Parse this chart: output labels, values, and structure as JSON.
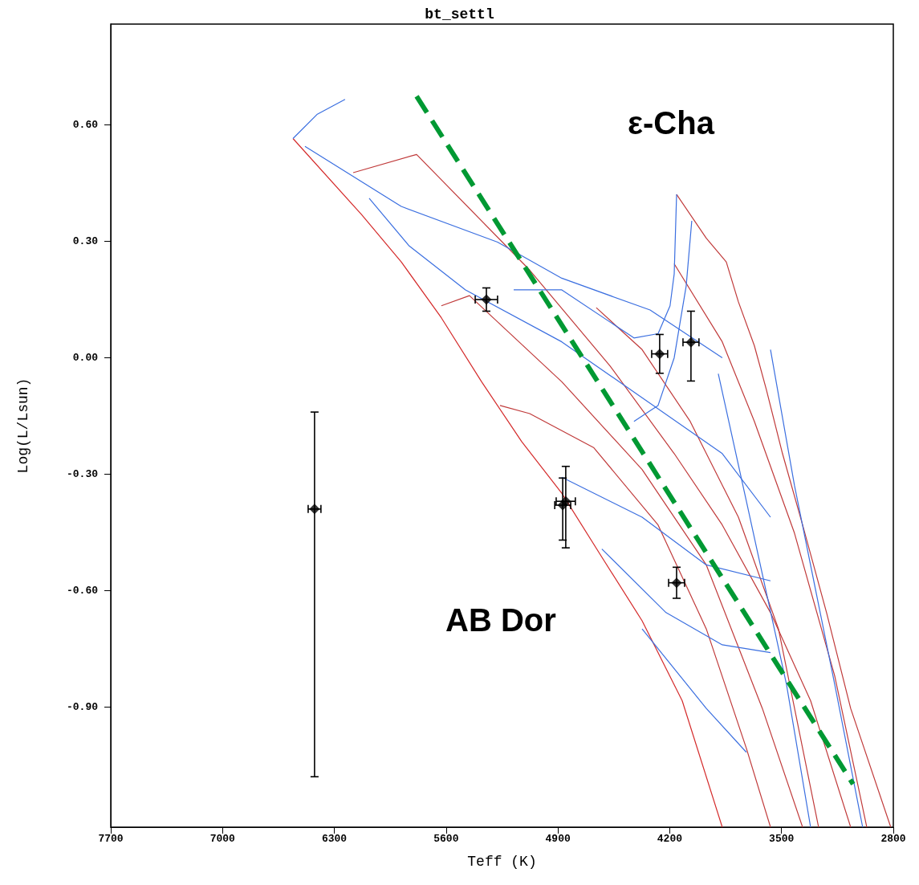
{
  "chart_data": {
    "type": "line",
    "title": "bt_settl",
    "xlabel": "Teff (K)",
    "ylabel": "Log(L/Lsun)",
    "xlim": [
      7700,
      2800
    ],
    "ylim": [
      -1.21,
      0.86
    ],
    "xticks": [
      7700,
      7000,
      6300,
      5600,
      4900,
      4200,
      3500,
      2800
    ],
    "yticks": [
      {
        "value": 0.6,
        "label": "0.60"
      },
      {
        "value": 0.3,
        "label": "0.30"
      },
      {
        "value": 0,
        "label": "0.00"
      },
      {
        "value": -0.3,
        "label": "-0.30"
      },
      {
        "value": -0.6,
        "label": "-0.60"
      },
      {
        "value": -0.9,
        "label": "-0.90"
      }
    ],
    "marker": "none",
    "line_style": "solid",
    "annotations": [
      "ε-Cha",
      "AB Dor"
    ],
    "series": [
      {
        "color": "#d42a2a",
        "x": [
          6559,
          6132,
          5881,
          5630,
          5378,
          5127,
          4876,
          4625,
          4373,
          4122,
          3871
        ],
        "values": [
          0.565,
          0.37,
          0.247,
          0.103,
          -0.062,
          -0.216,
          -0.349,
          -0.514,
          -0.678,
          -0.884,
          -1.21
        ]
      },
      {
        "color": "#c03a3a",
        "x": [
          4157,
          3971,
          3846,
          3770,
          3670,
          3595,
          3494,
          3368,
          3218,
          3067,
          2816
        ],
        "values": [
          0.421,
          0.308,
          0.247,
          0.144,
          0.031,
          -0.082,
          -0.247,
          -0.431,
          -0.657,
          -0.904,
          -1.21
        ]
      },
      {
        "color": "#c03a3a",
        "x": [
          6182,
          5785,
          5077,
          4574,
          4172,
          3871,
          3569,
          3318,
          3067
        ],
        "values": [
          0.477,
          0.524,
          0.226,
          -0.021,
          -0.247,
          -0.431,
          -0.657,
          -0.884,
          -1.21
        ]
      },
      {
        "color": "#c03a3a",
        "x": [
          5630,
          5454,
          4876,
          4373,
          3971,
          3620,
          3368
        ],
        "values": [
          0.134,
          0.16,
          -0.062,
          -0.288,
          -0.534,
          -0.904,
          -1.21
        ]
      },
      {
        "color": "#c03a3a",
        "x": [
          5263,
          5077,
          4675,
          4273,
          3971,
          3720,
          3569
        ],
        "values": [
          -0.123,
          -0.144,
          -0.232,
          -0.431,
          -0.699,
          -1.007,
          -1.21
        ]
      },
      {
        "color": "#c03a3a",
        "x": [
          4660,
          4373,
          4072,
          3770,
          3519,
          3268
        ],
        "values": [
          0.129,
          0.021,
          -0.164,
          -0.411,
          -0.699,
          -1.21
        ]
      },
      {
        "color": "#c03a3a",
        "x": [
          4172,
          3871,
          3670,
          3419,
          3167,
          2966
        ],
        "values": [
          0.242,
          0.041,
          -0.164,
          -0.452,
          -0.82,
          -1.21
        ]
      },
      {
        "color": "#3b6fe0",
        "x": [
          6559,
          6409,
          6233
        ],
        "values": [
          0.565,
          0.627,
          0.666
        ]
      },
      {
        "color": "#3b6fe0",
        "x": [
          6484,
          5881,
          5278,
          4876,
          4323,
          3871
        ],
        "values": [
          0.545,
          0.39,
          0.298,
          0.205,
          0.123,
          0.0
        ]
      },
      {
        "color": "#3b6fe0",
        "x": [
          6082,
          5831,
          5479,
          4876,
          4373,
          3871,
          3569
        ],
        "values": [
          0.411,
          0.288,
          0.175,
          0.041,
          -0.103,
          -0.247,
          -0.411
        ]
      },
      {
        "color": "#3b6fe0",
        "x": [
          4157,
          4172,
          4198,
          4273,
          4424,
          4876,
          5177
        ],
        "values": [
          0.421,
          0.216,
          0.134,
          0.062,
          0.051,
          0.175,
          0.175
        ]
      },
      {
        "color": "#3b6fe0",
        "x": [
          4062,
          4097,
          4172,
          4273,
          4424
        ],
        "values": [
          0.353,
          0.185,
          0.0,
          -0.123,
          -0.164
        ]
      },
      {
        "color": "#3b6fe0",
        "x": [
          3896,
          3720,
          3469,
          3318
        ],
        "values": [
          -0.041,
          -0.37,
          -0.842,
          -1.21
        ]
      },
      {
        "color": "#3b6fe0",
        "x": [
          3569,
          3419,
          3167,
          2992
        ],
        "values": [
          0.021,
          -0.329,
          -0.842,
          -1.21
        ]
      },
      {
        "color": "#3b6fe0",
        "x": [
          4876,
          4373,
          3971,
          3569
        ],
        "values": [
          -0.308,
          -0.411,
          -0.534,
          -0.575
        ]
      },
      {
        "color": "#3b6fe0",
        "x": [
          4625,
          4223,
          3871,
          3569
        ],
        "values": [
          -0.493,
          -0.657,
          -0.74,
          -0.76
        ]
      },
      {
        "color": "#3b6fe0",
        "x": [
          4373,
          3971,
          3720
        ],
        "values": [
          -0.699,
          -0.904,
          -1.017
        ]
      },
      {
        "color": "#009933",
        "line_style": "dashed",
        "x": [
          5785,
          3052
        ],
        "values": [
          0.674,
          -1.099
        ]
      },
      {
        "type": "scatter",
        "marker": "diamond",
        "color": "#000000",
        "x": [
          6424,
          5348,
          4851,
          4870,
          4263,
          4067,
          4157
        ],
        "values": [
          -0.39,
          0.15,
          -0.37,
          -0.38,
          0.01,
          0.04,
          -0.58
        ],
        "errors": [
          [
            -1.08,
            -0.14
          ],
          0.03,
          [
            -0.49,
            -0.28
          ],
          [
            -0.47,
            -0.31
          ],
          [
            -0.04,
            0.06
          ],
          [
            -0.06,
            0.12
          ],
          [
            -0.62,
            -0.54
          ]
        ],
        "xerrors": [
          40,
          70,
          60,
          50,
          50,
          50,
          50
        ]
      }
    ]
  }
}
